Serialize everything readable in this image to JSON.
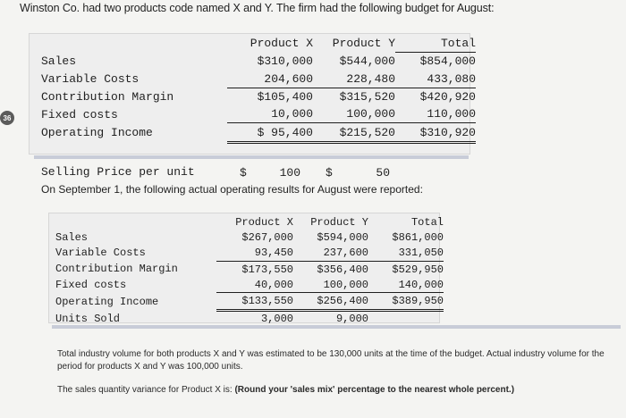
{
  "intro": "Winston Co. had two products code named X and Y. The firm had the following budget for August:",
  "question_number": "36",
  "budget": {
    "headers": [
      "",
      "Product X",
      "Product Y",
      "Total"
    ],
    "rows": [
      {
        "label": "Sales",
        "x": "$310,000",
        "y": "$544,000",
        "total": "$854,000"
      },
      {
        "label": "Variable Costs",
        "x": "204,600",
        "y": "228,480",
        "total": "433,080"
      },
      {
        "label": "Contribution Margin",
        "x": "$105,400",
        "y": "$315,520",
        "total": "$420,920"
      },
      {
        "label": "Fixed costs",
        "x": "10,000",
        "y": "100,000",
        "total": "110,000"
      },
      {
        "label": "Operating Income",
        "x": "$ 95,400",
        "y": "$215,520",
        "total": "$310,920"
      },
      {
        "label": "Selling Price per unit",
        "x_sym": "$",
        "x_val": "100",
        "y_sym": "$",
        "y_val": "50",
        "total": ""
      }
    ]
  },
  "middle_text": "On September 1, the following actual operating results for August were reported:",
  "actual": {
    "headers": [
      "",
      "Product X",
      "Product Y",
      "Total"
    ],
    "rows": [
      {
        "label": "Sales",
        "x": "$267,000",
        "y": "$594,000",
        "total": "$861,000"
      },
      {
        "label": "Variable Costs",
        "x": "93,450",
        "y": "237,600",
        "total": "331,050"
      },
      {
        "label": "Contribution Margin",
        "x": "$173,550",
        "y": "$356,400",
        "total": "$529,950"
      },
      {
        "label": "Fixed costs",
        "x": "40,000",
        "y": "100,000",
        "total": "140,000"
      },
      {
        "label": "Operating Income",
        "x": "$133,550",
        "y": "$256,400",
        "total": "$389,950"
      },
      {
        "label": "Units Sold",
        "x": "3,000",
        "y": "9,000",
        "total": ""
      }
    ]
  },
  "footer_text": "Total industry volume for both products X and Y was estimated to be 130,000 units at the time of the budget. Actual industry volume for the period for products X and Y was 100,000 units.",
  "prompt_text": "The sales quantity variance for Product X is: ",
  "prompt_bold": "(Round your 'sales mix' percentage to the nearest whole percent.)"
}
